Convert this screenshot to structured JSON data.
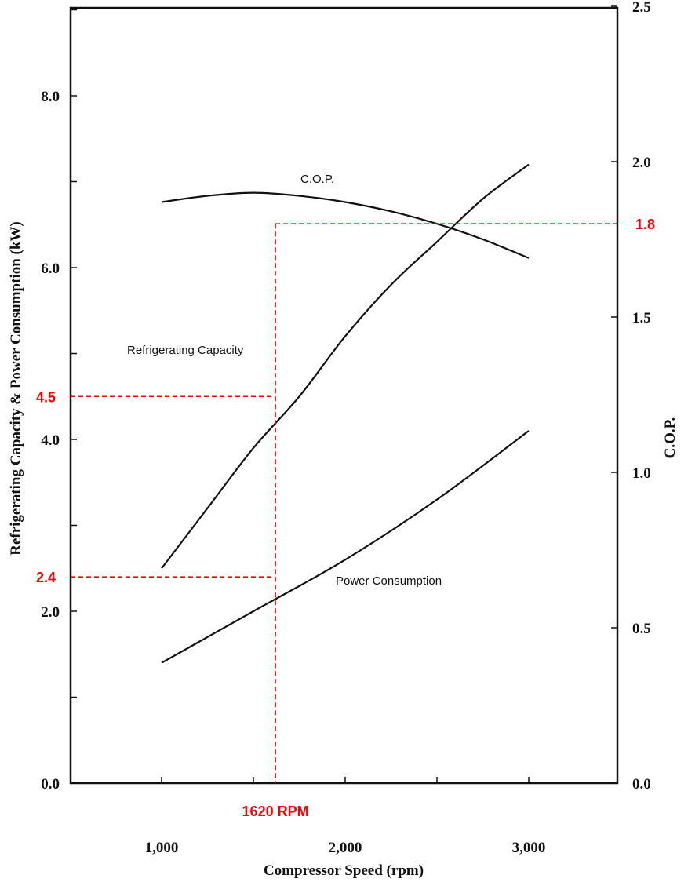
{
  "chart_data": {
    "type": "line",
    "title": "",
    "xlabel": "Compressor Speed (rpm)",
    "ylabel": "Refrigerating Capacity & Power Consumption (kW)",
    "y2label": "C.O.P.",
    "xlim": [
      500,
      3500
    ],
    "ylim": [
      0,
      9
    ],
    "y2lim": [
      0,
      2.5
    ],
    "x_ticks": [
      1000,
      2000,
      3000
    ],
    "x_tick_labels": [
      "1,000",
      "2,000",
      "3,000"
    ],
    "y_ticks": [
      0,
      2,
      4,
      6,
      8
    ],
    "y_tick_labels": [
      "0.0",
      "2.0",
      "4.0",
      "6.0",
      "8.0"
    ],
    "y2_ticks": [
      0,
      0.5,
      1.0,
      1.5,
      2.0,
      2.5
    ],
    "y2_tick_labels": [
      "0.0",
      "0.5",
      "1.0",
      "1.5",
      "2.0",
      "2.5"
    ],
    "grid": false,
    "series": [
      {
        "name": "C.O.P.",
        "axis": "right",
        "x": [
          1000,
          1250,
          1500,
          1750,
          2000,
          2250,
          2500,
          2750,
          3000
        ],
        "values": [
          1.87,
          1.89,
          1.9,
          1.89,
          1.87,
          1.84,
          1.8,
          1.75,
          1.69
        ]
      },
      {
        "name": "Refrigerating Capacity",
        "axis": "left",
        "x": [
          1000,
          1250,
          1500,
          1750,
          2000,
          2250,
          2500,
          2750,
          3000
        ],
        "values": [
          2.5,
          3.2,
          3.9,
          4.5,
          5.2,
          5.8,
          6.3,
          6.8,
          7.2
        ]
      },
      {
        "name": "Power Consumption",
        "axis": "left",
        "x": [
          1000,
          1500,
          2000,
          2500,
          3000
        ],
        "values": [
          1.4,
          2.0,
          2.6,
          3.3,
          4.1
        ]
      }
    ],
    "annotations": {
      "color": "#ff0000",
      "x_marker": {
        "x": 1620,
        "label": "1620 RPM"
      },
      "left_markers": [
        {
          "y": 4.5,
          "label": "4.5"
        },
        {
          "y": 2.4,
          "label": "2.4"
        }
      ],
      "right_markers": [
        {
          "y": 1.8,
          "label": "1.8"
        }
      ]
    }
  }
}
